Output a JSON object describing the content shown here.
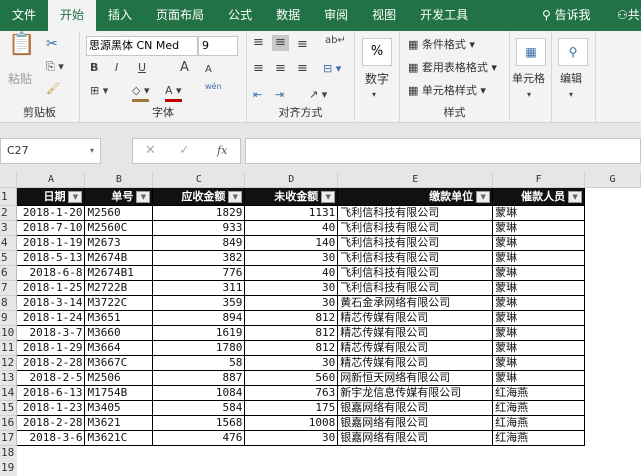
{
  "ribbon_tabs": [
    "文件",
    "开始",
    "插入",
    "页面布局",
    "公式",
    "数据",
    "审阅",
    "视图",
    "开发工具"
  ],
  "active_tab": "开始",
  "tell_me": "告诉我",
  "share": "共享",
  "clipboard": {
    "paste": "粘贴",
    "label": "剪贴板"
  },
  "font": {
    "name": "思源黑体 CN Med",
    "size": "9",
    "bold": "B",
    "italic": "I",
    "underline": "U",
    "grow": "A",
    "shrink": "A",
    "phonetic": "wén",
    "label": "字体"
  },
  "alignment": {
    "label": "对齐方式"
  },
  "number": {
    "symbol": "%",
    "label": "数字"
  },
  "styles": {
    "conditional": "条件格式",
    "table": "套用表格格式",
    "cell_styles": "单元格样式",
    "label": "样式"
  },
  "cells": {
    "label": "单元格"
  },
  "editing": {
    "label": "编辑"
  },
  "formula_bar": {
    "name_box": "C27",
    "cancel": "✕",
    "enter": "✓",
    "fx": "fx",
    "value": ""
  },
  "colors": {
    "ribbon_green": "#217346",
    "header_fill": "#111111",
    "fill_color": "#a07a3c",
    "font_color": "#c00000"
  },
  "columns": [
    "A",
    "B",
    "C",
    "D",
    "E",
    "F",
    "G"
  ],
  "headers": [
    "日期",
    "单号",
    "应收金额",
    "未收金额",
    "缴款单位",
    "催款人员"
  ],
  "rows": [
    [
      "2018-1-20",
      "M2560",
      "1829",
      "1131",
      "飞利信科技有限公司",
      "蒙琳"
    ],
    [
      "2018-7-10",
      "M2560C",
      "933",
      "40",
      "飞利信科技有限公司",
      "蒙琳"
    ],
    [
      "2018-1-19",
      "M2673",
      "849",
      "140",
      "飞利信科技有限公司",
      "蒙琳"
    ],
    [
      "2018-5-13",
      "M2674B",
      "382",
      "30",
      "飞利信科技有限公司",
      "蒙琳"
    ],
    [
      "2018-6-8",
      "M2674B1",
      "776",
      "40",
      "飞利信科技有限公司",
      "蒙琳"
    ],
    [
      "2018-1-25",
      "M2722B",
      "311",
      "30",
      "飞利信科技有限公司",
      "蒙琳"
    ],
    [
      "2018-3-14",
      "M3722C",
      "359",
      "30",
      "黄石金承网络有限公司",
      "蒙琳"
    ],
    [
      "2018-1-24",
      "M3651",
      "894",
      "812",
      "精芯传媒有限公司",
      "蒙琳"
    ],
    [
      "2018-3-7",
      "M3660",
      "1619",
      "812",
      "精芯传媒有限公司",
      "蒙琳"
    ],
    [
      "2018-1-29",
      "M3664",
      "1780",
      "812",
      "精芯传媒有限公司",
      "蒙琳"
    ],
    [
      "2018-2-28",
      "M3667C",
      "58",
      "30",
      "精芯传媒有限公司",
      "蒙琳"
    ],
    [
      "2018-2-5",
      "M2506",
      "887",
      "560",
      "网新恒天网络有限公司",
      "蒙琳"
    ],
    [
      "2018-6-13",
      "M1754B",
      "1084",
      "763",
      "新宇龙信息传媒有限公司",
      "红海燕"
    ],
    [
      "2018-1-23",
      "M3405",
      "584",
      "175",
      "银嘉网络有限公司",
      "红海燕"
    ],
    [
      "2018-2-28",
      "M3621",
      "1568",
      "1008",
      "银嘉网络有限公司",
      "红海燕"
    ],
    [
      "2018-3-6",
      "M3621C",
      "476",
      "30",
      "银嘉网络有限公司",
      "红海燕"
    ]
  ],
  "row_numbers": [
    "1",
    "2",
    "3",
    "4",
    "5",
    "6",
    "7",
    "8",
    "9",
    "10",
    "11",
    "12",
    "13",
    "14",
    "15",
    "16",
    "17",
    "18",
    "19"
  ]
}
